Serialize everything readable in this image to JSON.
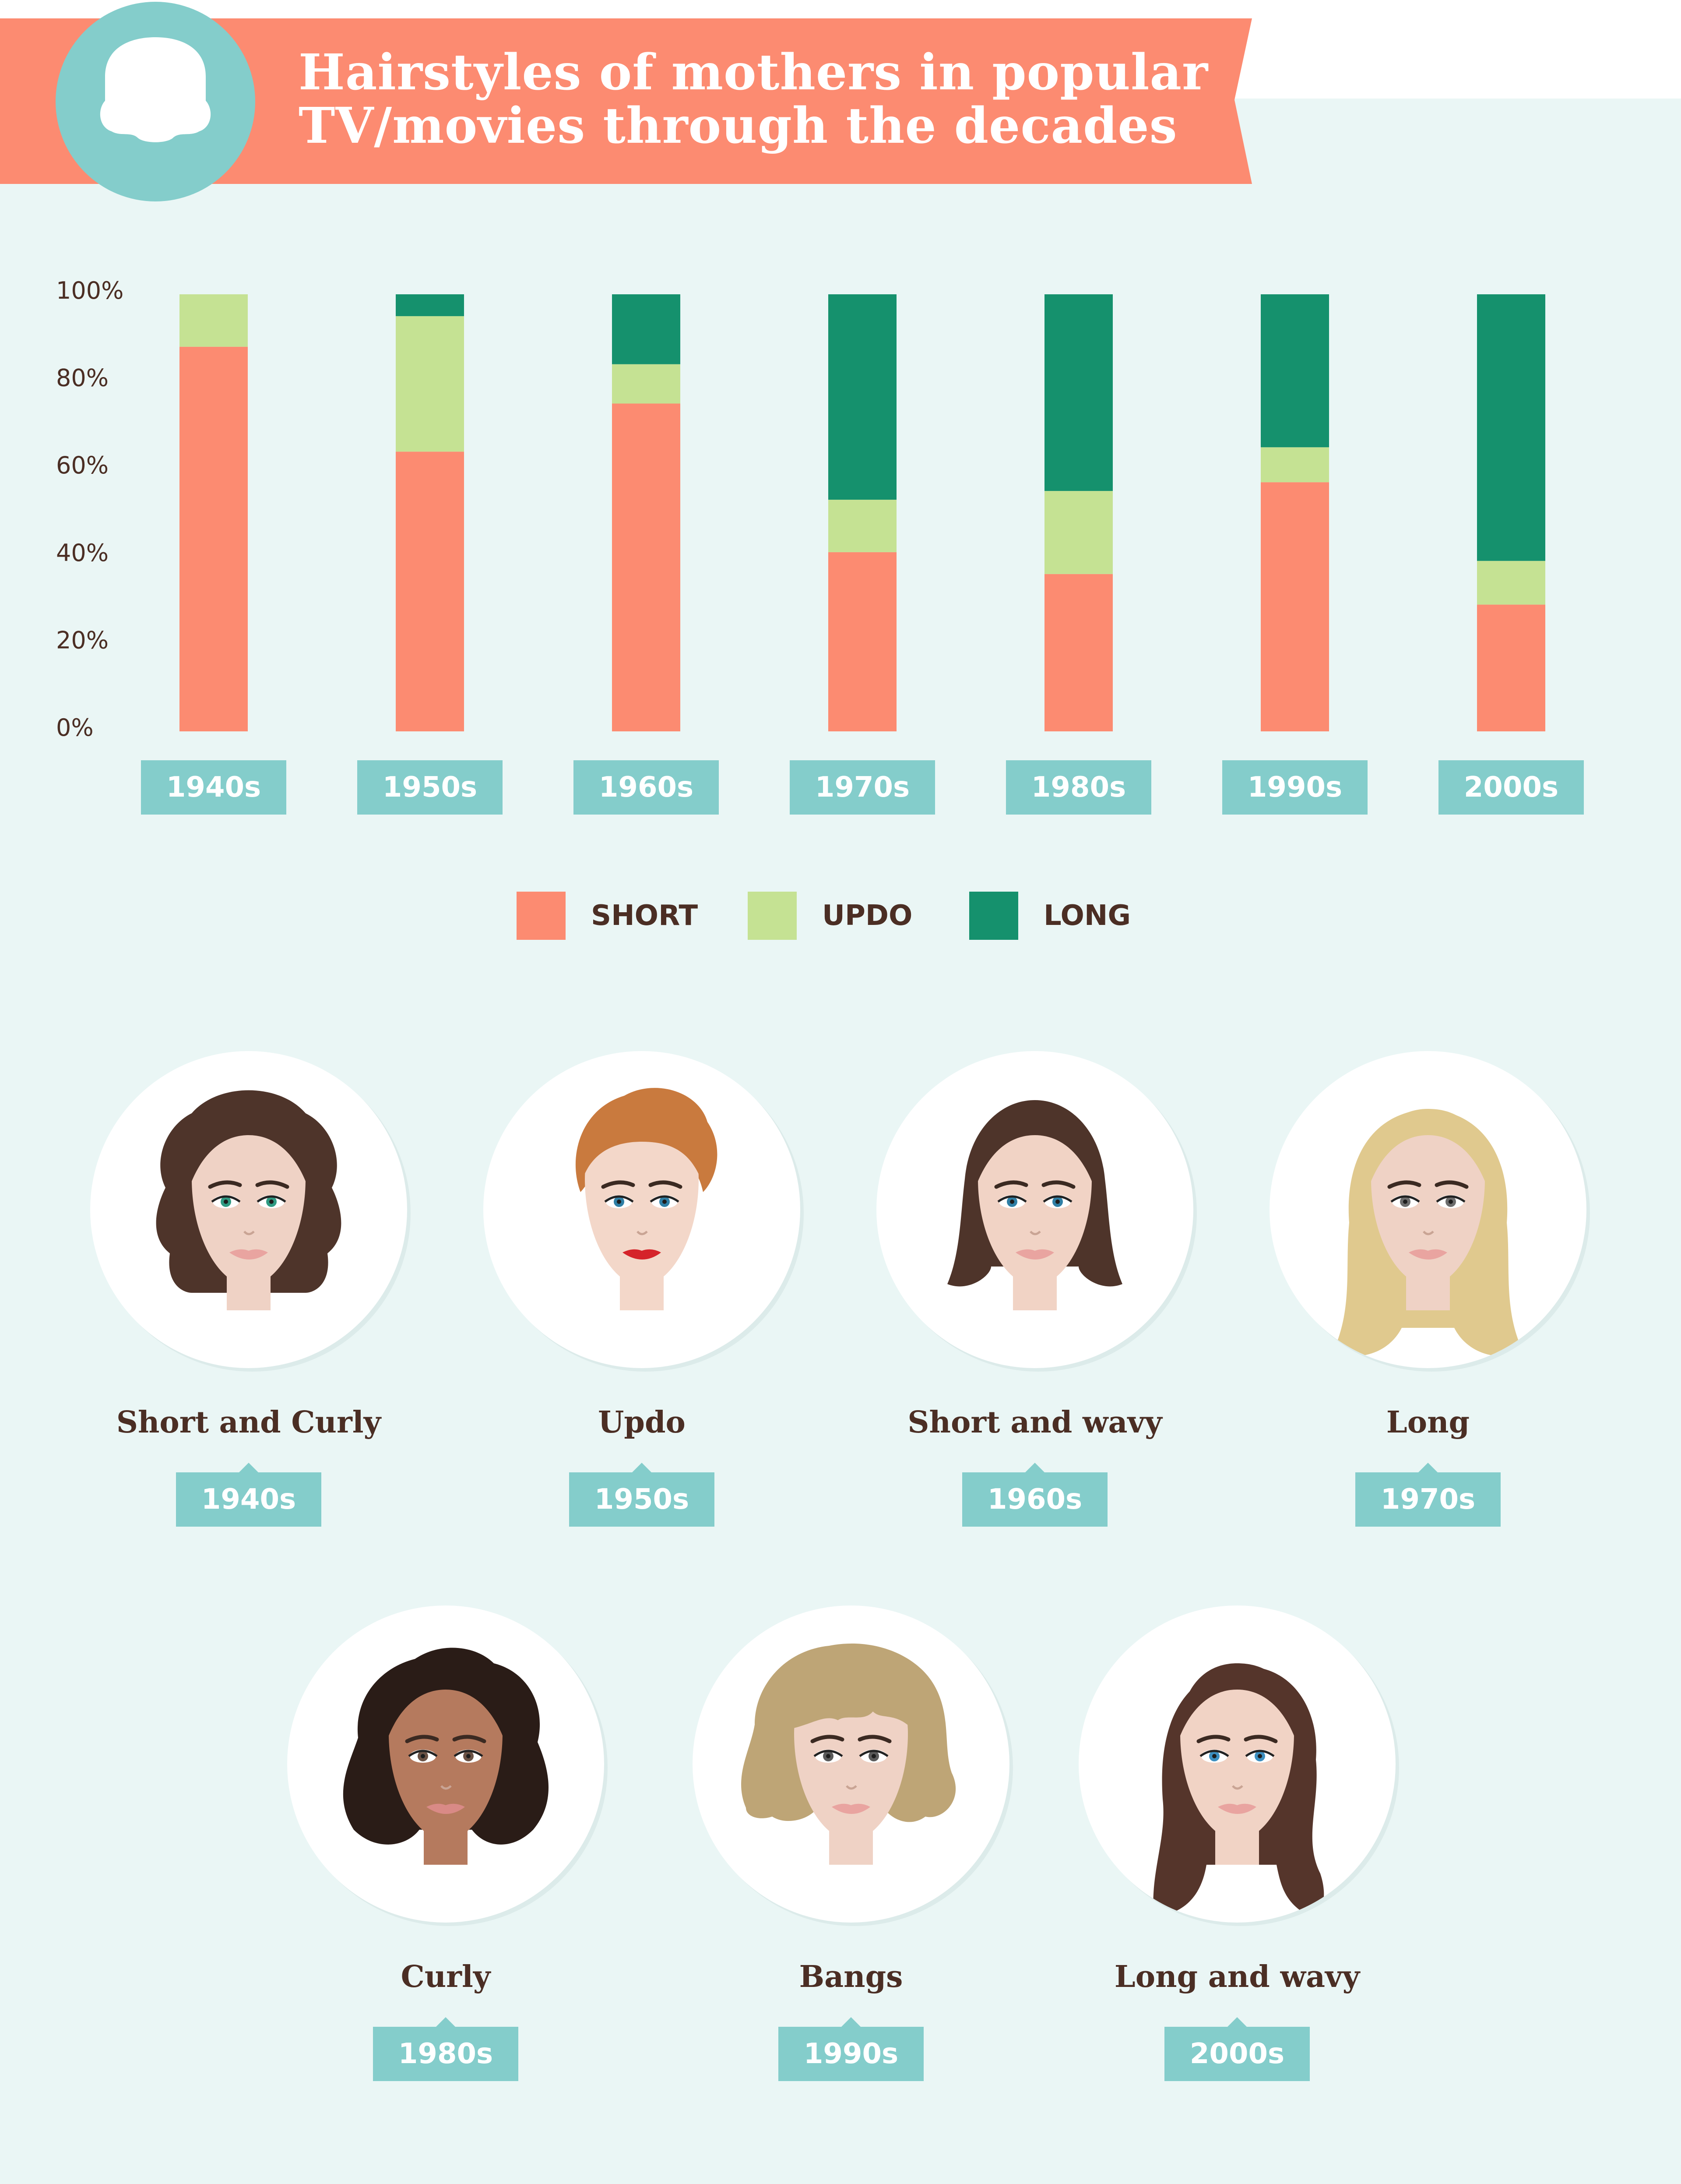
{
  "header": {
    "title_line1": "Hairstyles of mothers in popular",
    "title_line2": "TV/movies through the decades",
    "logo_icon": "hair-icon",
    "colors": {
      "banner": "#fc8b71",
      "circle": "#84cdcb",
      "background": "#eaf6f5"
    }
  },
  "chart_data": {
    "type": "bar",
    "stacked": true,
    "categories": [
      "1940s",
      "1950s",
      "1960s",
      "1970s",
      "1980s",
      "1990s",
      "2000s"
    ],
    "series": [
      {
        "name": "SHORT",
        "color": "#fc8b71",
        "values": [
          88,
          64,
          75,
          41,
          36,
          57,
          29
        ]
      },
      {
        "name": "UPDO",
        "color": "#c5e293",
        "values": [
          12,
          31,
          9,
          12,
          19,
          8,
          10
        ]
      },
      {
        "name": "LONG",
        "color": "#15916d",
        "values": [
          0,
          5,
          16,
          47,
          45,
          35,
          61
        ]
      }
    ],
    "yticks": [
      "100%",
      "80%",
      "60%",
      "40%",
      "20%",
      "0%"
    ],
    "ylim": [
      0,
      100
    ],
    "legend_position": "bottom-center"
  },
  "legend": [
    {
      "label": "SHORT",
      "color": "#fc8b71"
    },
    {
      "label": "UPDO",
      "color": "#c5e293"
    },
    {
      "label": "LONG",
      "color": "#15916d"
    }
  ],
  "hairstyles": [
    {
      "name": "Short and Curly",
      "decade": "1940s",
      "hair": "#4e342a",
      "skin": "#efd2c5",
      "eyes": "#2f9a82",
      "lips": "#e9a4a0"
    },
    {
      "name": "Updo",
      "decade": "1950s",
      "hair": "#c97a3e",
      "skin": "#f3d7c9",
      "eyes": "#2f7fa5",
      "lips": "#d5232a"
    },
    {
      "name": "Short and wavy",
      "decade": "1960s",
      "hair": "#4e342a",
      "skin": "#f1d3c5",
      "eyes": "#2f7fa5",
      "lips": "#e9a4a0"
    },
    {
      "name": "Long",
      "decade": "1970s",
      "hair": "#e0c98e",
      "skin": "#efd2c5",
      "eyes": "#6c6c6c",
      "lips": "#e9a4a0"
    },
    {
      "name": "Curly",
      "decade": "1980s",
      "hair": "#2a1c17",
      "skin": "#b57a5e",
      "eyes": "#6b5245",
      "lips": "#d98a86"
    },
    {
      "name": "Bangs",
      "decade": "1990s",
      "hair": "#bea576",
      "skin": "#efd2c5",
      "eyes": "#5a5a5a",
      "lips": "#e9a4a0"
    },
    {
      "name": "Long and wavy",
      "decade": "2000s",
      "hair": "#55352b",
      "skin": "#f1d3c5",
      "eyes": "#3c8fc0",
      "lips": "#e9a4a0"
    }
  ]
}
